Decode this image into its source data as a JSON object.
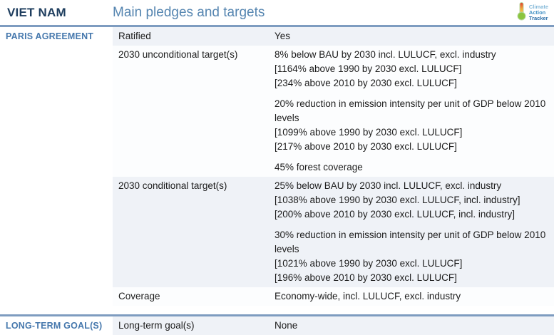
{
  "header": {
    "country": "VIET NAM",
    "title": "Main pledges and targets",
    "logo": {
      "line1": "Climate",
      "line2": "Action",
      "line3": "Tracker"
    }
  },
  "colors": {
    "country_text": "#1e3d5e",
    "title_text": "#5585b0",
    "section_label_text": "#4678ad",
    "rule": "#7e9cc0",
    "row_light_bg": "#eff2f7",
    "row_white_bg": "#fcfdfe"
  },
  "sections": [
    {
      "label": "PARIS AGREEMENT",
      "rows": [
        {
          "label": "Ratified",
          "groups": [
            [
              "Yes"
            ]
          ]
        },
        {
          "label": "2030 unconditional target(s)",
          "groups": [
            [
              "8% below BAU by 2030 incl. LULUCF, excl. industry",
              "[1164% above 1990 by 2030 excl. LULUCF]",
              "[234% above 2010 by 2030 excl. LULUCF]"
            ],
            [
              "20% reduction in emission intensity per unit of GDP below 2010 levels",
              "[1099% above 1990 by 2030 excl. LULUCF]",
              "[217% above 2010 by 2030 excl. LULUCF]"
            ],
            [
              "45% forest coverage"
            ]
          ]
        },
        {
          "label": "2030 conditional target(s)",
          "groups": [
            [
              "25% below BAU by 2030 incl. LULUCF, excl. industry",
              "[1038% above 1990 by 2030 excl. LULUCF, incl. industry]",
              "[200% above 2010 by 2030 excl. LULUCF, incl. industry]"
            ],
            [
              "30% reduction in emission intensity per unit of GDP below 2010 levels",
              "[1021% above 1990 by 2030 excl. LULUCF]",
              "[196% above 2010 by 2030 excl. LULUCF]"
            ]
          ]
        },
        {
          "label": "Coverage",
          "groups": [
            [
              "Economy-wide, incl. LULUCF, excl. industry"
            ]
          ]
        }
      ]
    },
    {
      "label": "LONG-TERM GOAL(S)",
      "rows": [
        {
          "label": "Long-term goal(s)",
          "groups": [
            [
              "None"
            ]
          ]
        }
      ]
    }
  ]
}
